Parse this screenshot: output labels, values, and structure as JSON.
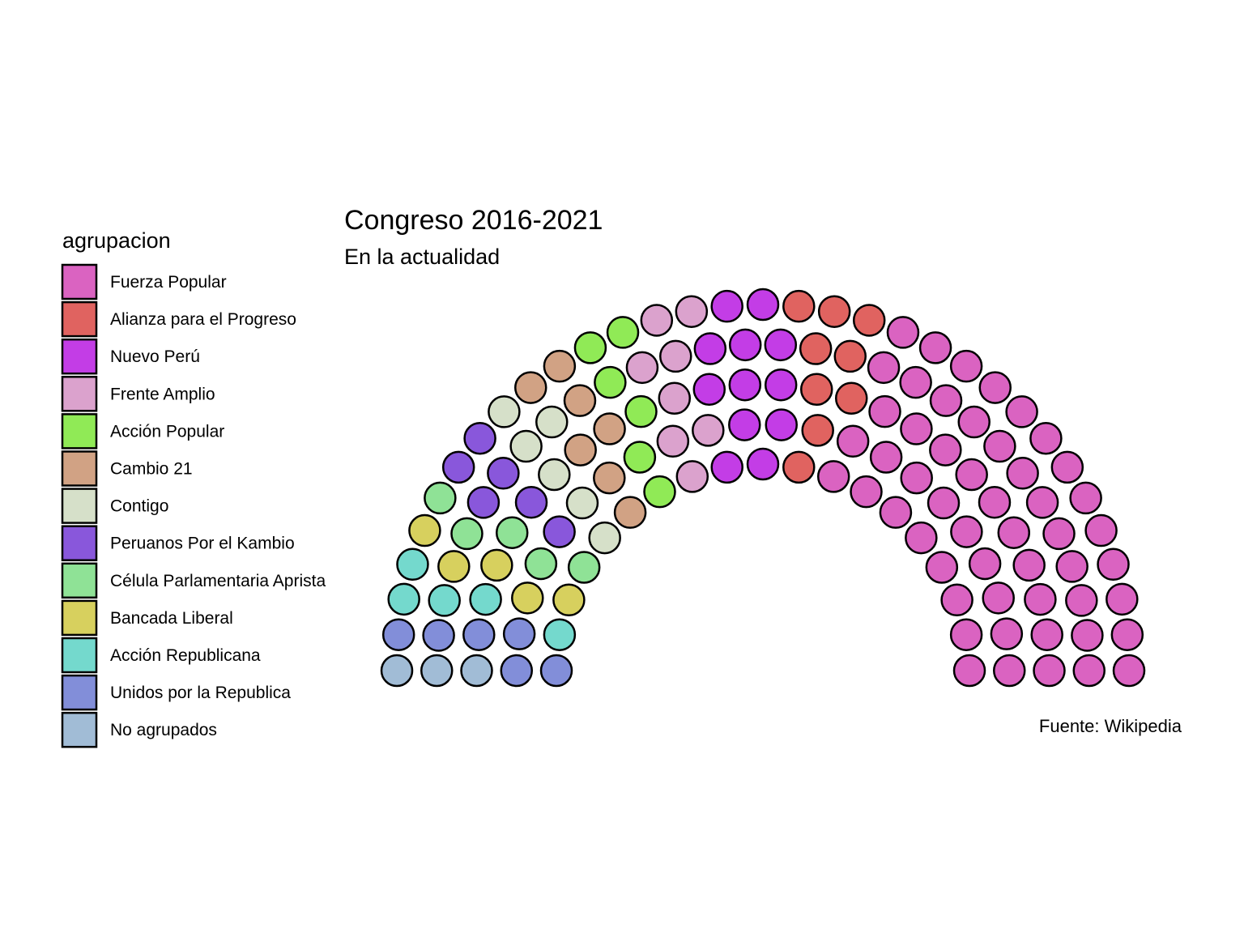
{
  "chart_data": {
    "type": "parliament",
    "title": "Congreso 2016-2021",
    "subtitle": "En la actualidad",
    "caption": "Fuente: Wikipedia",
    "legend_title": "agrupacion",
    "legend_position": "left",
    "total_seats": 130,
    "rows": 5,
    "series": [
      {
        "name": "Fuerza Popular",
        "value": 52,
        "color": "#DA63C1"
      },
      {
        "name": "Alianza para el Progreso",
        "value": 9,
        "color": "#E06360"
      },
      {
        "name": "Nuevo Perú",
        "value": 12,
        "color": "#C33DE6"
      },
      {
        "name": "Frente Amplio",
        "value": 8,
        "color": "#DBA2CD"
      },
      {
        "name": "Acción Popular",
        "value": 6,
        "color": "#90EA56"
      },
      {
        "name": "Cambio 21",
        "value": 7,
        "color": "#D1A284"
      },
      {
        "name": "Contigo",
        "value": 6,
        "color": "#D6E0C9"
      },
      {
        "name": "Peruanos Por el Kambio",
        "value": 6,
        "color": "#8957DB"
      },
      {
        "name": "Célula Parlamentaria Aprista",
        "value": 5,
        "color": "#8FE296"
      },
      {
        "name": "Bancada Liberal",
        "value": 5,
        "color": "#D7D05E"
      },
      {
        "name": "Acción Republicana",
        "value": 5,
        "color": "#74D9CD"
      },
      {
        "name": "Unidos por la Republica",
        "value": 6,
        "color": "#828ED9"
      },
      {
        "name": "No agrupados",
        "value": 3,
        "color": "#A1BCD6"
      }
    ]
  }
}
